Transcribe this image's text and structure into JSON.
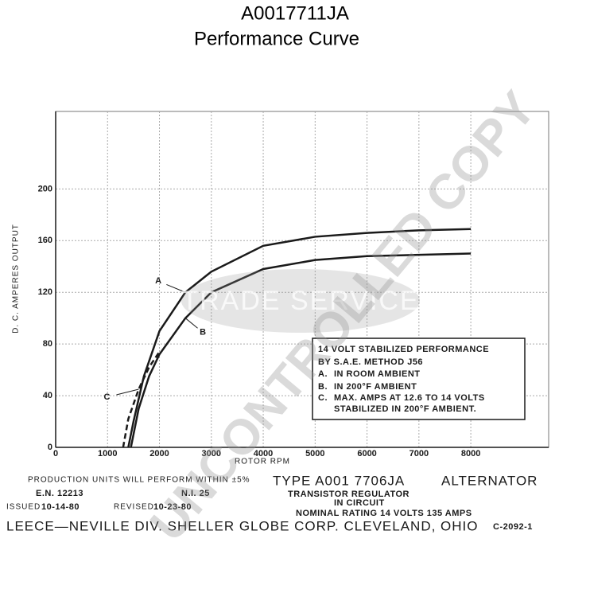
{
  "chart_data": {
    "type": "line",
    "title": "A0017711JA",
    "subtitle": "Performance Curve",
    "x_label": "ROTOR RPM",
    "y_label": "D. C. AMPERES OUTPUT",
    "xlim": [
      0,
      9500
    ],
    "ylim": [
      0,
      260
    ],
    "xticks": [
      0,
      1000,
      2000,
      3000,
      4000,
      5000,
      6000,
      7000,
      8000
    ],
    "yticks": [
      0,
      40,
      80,
      120,
      160,
      200
    ],
    "grid": true,
    "series": [
      {
        "name": "A",
        "color": "#1a1a1a",
        "style": "solid",
        "x": [
          1400,
          1500,
          1700,
          2000,
          2500,
          3000,
          4000,
          5000,
          6000,
          7000,
          8000
        ],
        "values": [
          0,
          20,
          55,
          90,
          120,
          136,
          156,
          163,
          166,
          168,
          169
        ]
      },
      {
        "name": "B",
        "color": "#1a1a1a",
        "style": "solid",
        "x": [
          1450,
          1600,
          1800,
          2000,
          2500,
          3000,
          4000,
          5000,
          6000,
          7000,
          8000
        ],
        "values": [
          0,
          30,
          55,
          72,
          100,
          120,
          138,
          145,
          148,
          149,
          150
        ]
      },
      {
        "name": "C",
        "color": "#1a1a1a",
        "style": "dashed",
        "x": [
          1300,
          1400,
          1600,
          1800,
          2000
        ],
        "values": [
          0,
          22,
          45,
          62,
          74
        ]
      }
    ],
    "notes": {
      "heading": [
        "14   VOLT STABILIZED PERFORMANCE",
        "BY S.A.E. METHOD  J56"
      ],
      "items": [
        {
          "key": "A.",
          "text": "IN ROOM AMBIENT"
        },
        {
          "key": "B.",
          "text": "IN 200°F AMBIENT"
        },
        {
          "key": "C.",
          "text": "MAX. AMPS AT 12.6 TO 14 VOLTS"
        }
      ],
      "tail": "STABILIZED IN 200°F AMBIENT."
    }
  },
  "footer": {
    "tolerance": "PRODUCTION UNITS WILL PERFORM WITHIN ±5%",
    "type": "TYPE  A001 7706JA",
    "kind": "ALTERNATOR",
    "regulator": "TRANSISTOR  REGULATOR",
    "circuit": "IN CIRCUIT",
    "rating": "NOMINAL RATING    14   VOLTS    135   AMPS",
    "en": "E.N. 12213",
    "ni": "N.I. 25",
    "issued_label": "ISSUED",
    "issued": "10-14-80",
    "revised_label": "REVISED",
    "revised": "10-23-80",
    "company": "LEECE—NEVILLE  DIV. SHELLER GLOBE CORP. CLEVELAND, OHIO",
    "drawing": "C-2092-1"
  },
  "watermarks": {
    "stamp": "UNCONTROLLED COPY",
    "brand": "TRADE SERVICE"
  }
}
